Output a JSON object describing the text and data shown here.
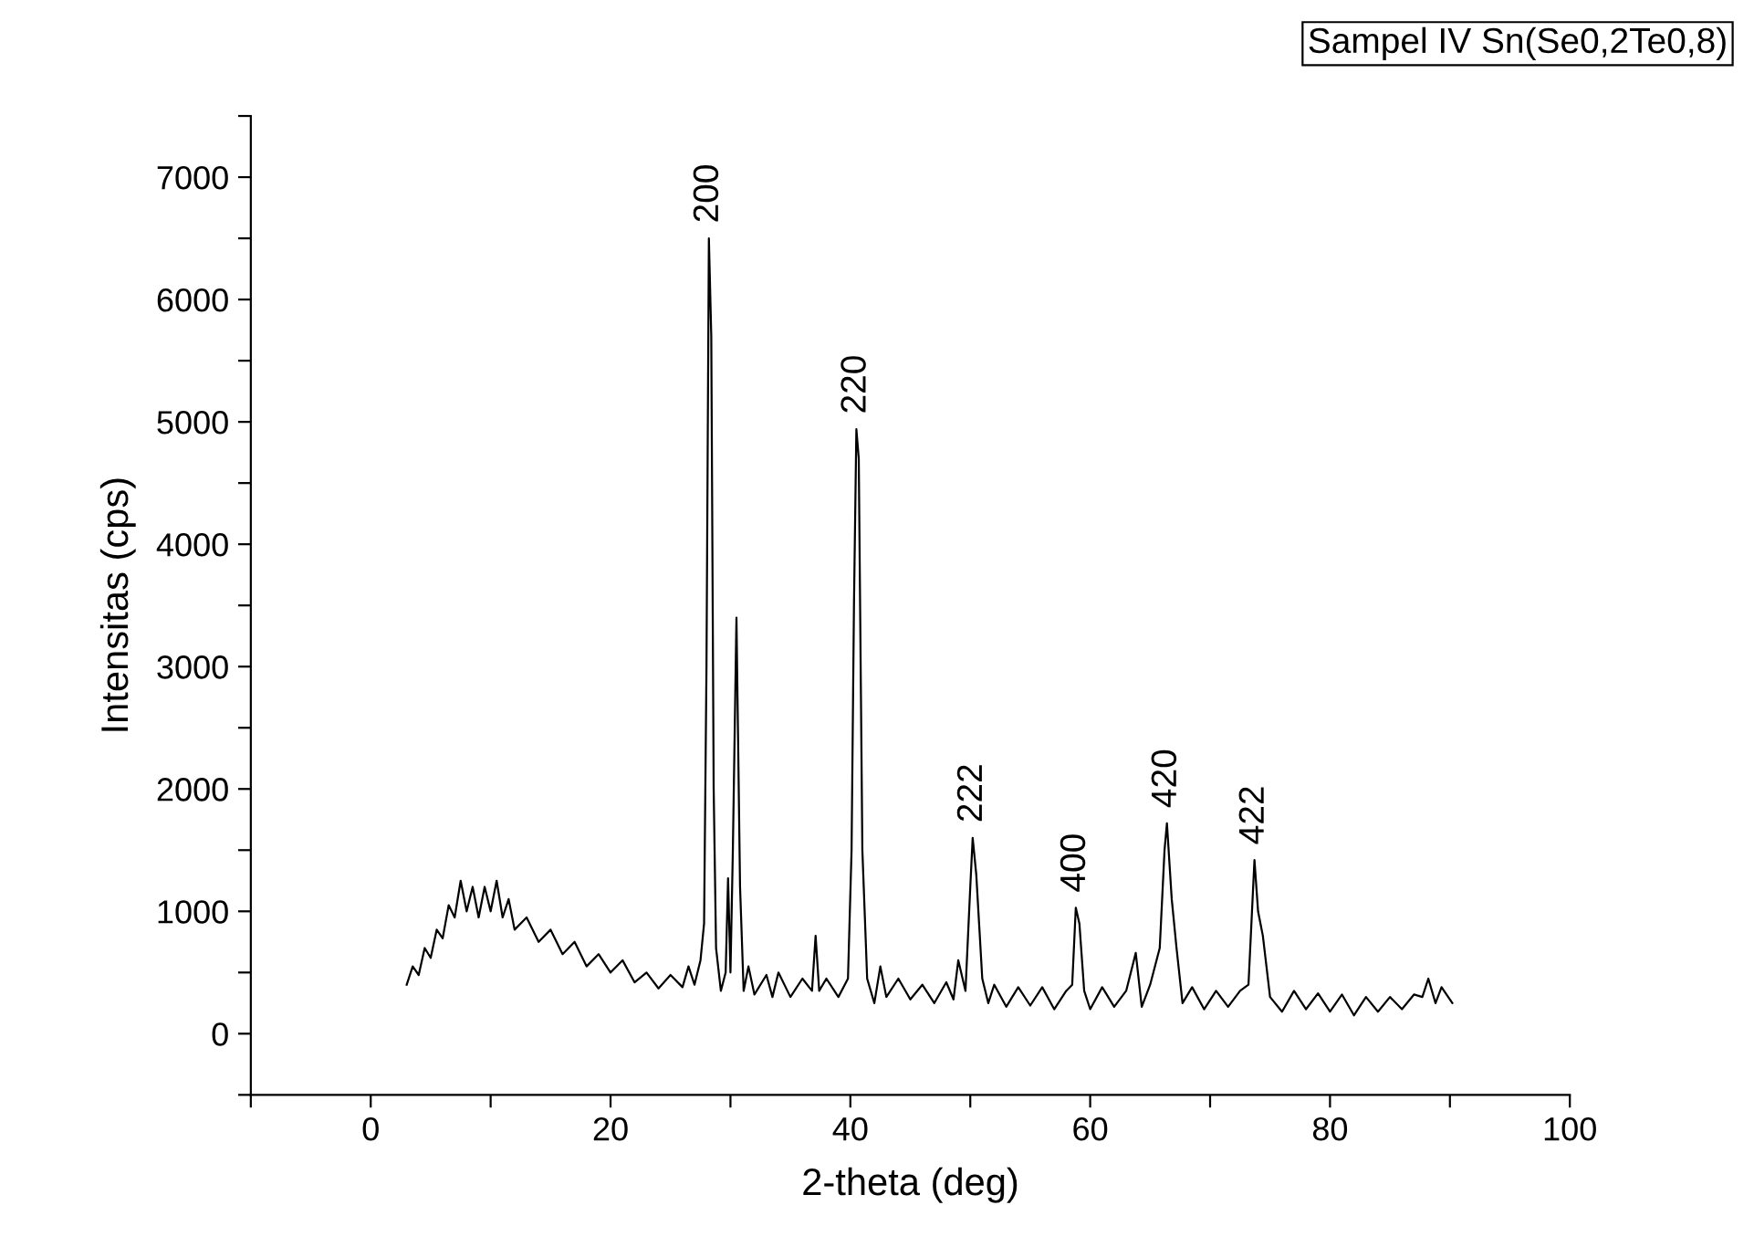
{
  "chart_data": {
    "type": "line",
    "xlabel": "2-theta (deg)",
    "ylabel": "Intensitas (cps)",
    "x": [
      3.0,
      3.5,
      4,
      4.5,
      5,
      5.5,
      6,
      6.5,
      7,
      7.5,
      8,
      8.5,
      9,
      9.5,
      10,
      10.5,
      11,
      11.5,
      12,
      13,
      14,
      15,
      16,
      17,
      18,
      19,
      20,
      21,
      22,
      23,
      24,
      25,
      26,
      26.5,
      27,
      27.5,
      27.8,
      28.0,
      28.2,
      28.4,
      28.6,
      28.8,
      29.2,
      29.6,
      29.8,
      30.0,
      30.2,
      30.5,
      30.8,
      31.1,
      31.5,
      32,
      33,
      33.5,
      34,
      35,
      36,
      36.8,
      37.1,
      37.4,
      38,
      39,
      39.8,
      40.1,
      40.3,
      40.5,
      40.7,
      41.0,
      41.4,
      42,
      42.5,
      43,
      44,
      45,
      46,
      47,
      48,
      48.6,
      49,
      49.6,
      50.0,
      50.2,
      50.5,
      51,
      51.5,
      52,
      53,
      54,
      55,
      56,
      57,
      58,
      58.5,
      58.8,
      59.1,
      59.5,
      60,
      61,
      62,
      63,
      63.8,
      64.3,
      65,
      65.8,
      66.2,
      66.4,
      66.8,
      67.2,
      67.7,
      68.5,
      69.5,
      70.5,
      71.5,
      72.5,
      73.2,
      73.7,
      74.0,
      74.4,
      75,
      76,
      77,
      78,
      79,
      80,
      81,
      82,
      83,
      84,
      85,
      86,
      87,
      87.7,
      88.2,
      88.8,
      89.3,
      90.2
    ],
    "series": [
      {
        "color": "#000000",
        "values": [
          400,
          550,
          480,
          700,
          620,
          850,
          780,
          1050,
          950,
          1250,
          1000,
          1200,
          950,
          1200,
          1000,
          1250,
          950,
          1100,
          850,
          950,
          750,
          850,
          650,
          750,
          550,
          650,
          500,
          600,
          420,
          500,
          370,
          480,
          380,
          550,
          400,
          600,
          900,
          3000,
          6500,
          5700,
          2000,
          700,
          350,
          500,
          1270,
          500,
          1500,
          3400,
          1200,
          350,
          550,
          320,
          480,
          300,
          500,
          300,
          450,
          350,
          800,
          350,
          450,
          300,
          450,
          1500,
          3500,
          4940,
          4700,
          1500,
          450,
          250,
          550,
          300,
          450,
          280,
          400,
          250,
          420,
          280,
          600,
          350,
          1200,
          1600,
          1300,
          450,
          250,
          400,
          220,
          380,
          230,
          380,
          200,
          350,
          400,
          1030,
          900,
          350,
          200,
          380,
          220,
          350,
          660,
          220,
          400,
          700,
          1500,
          1720,
          1100,
          700,
          250,
          380,
          200,
          350,
          220,
          350,
          400,
          1420,
          1000,
          800,
          300,
          180,
          350,
          200,
          330,
          180,
          320,
          150,
          300,
          180,
          300,
          200,
          320,
          300,
          450,
          250,
          380,
          250
        ]
      }
    ],
    "xlim": [
      -10,
      100
    ],
    "xticks": [
      {
        "value": -10,
        "label": null
      },
      0,
      {
        "value": 10,
        "label": null
      },
      20,
      {
        "value": 30,
        "label": null
      },
      40,
      {
        "value": 50,
        "label": null
      },
      60,
      {
        "value": 70,
        "label": null
      },
      80,
      {
        "value": 90,
        "label": null
      },
      100
    ],
    "ylim": [
      -500,
      7500
    ],
    "yticks": [
      {
        "value": -500,
        "label": null
      },
      0,
      {
        "value": 500,
        "label": null
      },
      1000,
      {
        "value": 1500,
        "label": null
      },
      2000,
      {
        "value": 2500,
        "label": null
      },
      3000,
      {
        "value": 3500,
        "label": null
      },
      4000,
      {
        "value": 4500,
        "label": null
      },
      5000,
      {
        "value": 5500,
        "label": null
      },
      6000,
      {
        "value": 6500,
        "label": null
      },
      7000,
      {
        "value": 7500,
        "label": null
      }
    ],
    "grid": false,
    "annotations": [
      {
        "text": "200",
        "x": 28.2,
        "y": 6500
      },
      {
        "text": "220",
        "x": 40.5,
        "y": 4940
      },
      {
        "text": "222",
        "x": 50.2,
        "y": 1600
      },
      {
        "text": "400",
        "x": 58.8,
        "y": 1030
      },
      {
        "text": "420",
        "x": 66.4,
        "y": 1720
      },
      {
        "text": "422",
        "x": 73.7,
        "y": 1420
      },
      "Sampel IV Sn(Se0,2Te0,8)"
    ]
  }
}
